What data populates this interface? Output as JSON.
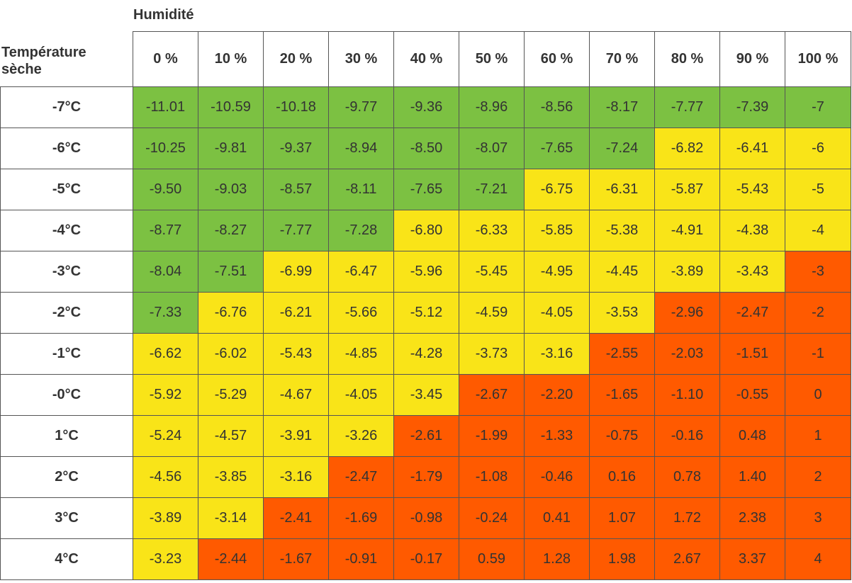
{
  "colors": {
    "green": "#7cc142",
    "yellow": "#f9e418",
    "orange": "#ff5a00",
    "border": "#555555",
    "text": "#333333"
  },
  "chart_data": {
    "type": "table",
    "column_title": "Humidité",
    "row_title": "Température\nsèche",
    "columns": [
      "0 %",
      "10 %",
      "20 %",
      "30 %",
      "40 %",
      "50 %",
      "60 %",
      "70 %",
      "80 %",
      "90 %",
      "100 %"
    ],
    "rows": [
      "-7°C",
      "-6°C",
      "-5°C",
      "-4°C",
      "-3°C",
      "-2°C",
      "-1°C",
      "-0°C",
      "1°C",
      "2°C",
      "3°C",
      "4°C"
    ],
    "values": [
      [
        "-11.01",
        "-10.59",
        "-10.18",
        "-9.77",
        "-9.36",
        "-8.96",
        "-8.56",
        "-8.17",
        "-7.77",
        "-7.39",
        "-7"
      ],
      [
        "-10.25",
        "-9.81",
        "-9.37",
        "-8.94",
        "-8.50",
        "-8.07",
        "-7.65",
        "-7.24",
        "-6.82",
        "-6.41",
        "-6"
      ],
      [
        "-9.50",
        "-9.03",
        "-8.57",
        "-8.11",
        "-7.65",
        "-7.21",
        "-6.75",
        "-6.31",
        "-5.87",
        "-5.43",
        "-5"
      ],
      [
        "-8.77",
        "-8.27",
        "-7.77",
        "-7.28",
        "-6.80",
        "-6.33",
        "-5.85",
        "-5.38",
        "-4.91",
        "-4.38",
        "-4"
      ],
      [
        "-8.04",
        "-7.51",
        "-6.99",
        "-6.47",
        "-5.96",
        "-5.45",
        "-4.95",
        "-4.45",
        "-3.89",
        "-3.43",
        "-3"
      ],
      [
        "-7.33",
        "-6.76",
        "-6.21",
        "-5.66",
        "-5.12",
        "-4.59",
        "-4.05",
        "-3.53",
        "-2.96",
        "-2.47",
        "-2"
      ],
      [
        "-6.62",
        "-6.02",
        "-5.43",
        "-4.85",
        "-4.28",
        "-3.73",
        "-3.16",
        "-2.55",
        "-2.03",
        "-1.51",
        "-1"
      ],
      [
        "-5.92",
        "-5.29",
        "-4.67",
        "-4.05",
        "-3.45",
        "-2.67",
        "-2.20",
        "-1.65",
        "-1.10",
        "-0.55",
        "0"
      ],
      [
        "-5.24",
        "-4.57",
        "-3.91",
        "-3.26",
        "-2.61",
        "-1.99",
        "-1.33",
        "-0.75",
        "-0.16",
        "0.48",
        "1"
      ],
      [
        "-4.56",
        "-3.85",
        "-3.16",
        "-2.47",
        "-1.79",
        "-1.08",
        "-0.46",
        "0.16",
        "0.78",
        "1.40",
        "2"
      ],
      [
        "-3.89",
        "-3.14",
        "-2.41",
        "-1.69",
        "-0.98",
        "-0.24",
        "0.41",
        "1.07",
        "1.72",
        "2.38",
        "3"
      ],
      [
        "-3.23",
        "-2.44",
        "-1.67",
        "-0.91",
        "-0.17",
        "0.59",
        "1.28",
        "1.98",
        "2.67",
        "3.37",
        "4"
      ]
    ],
    "cell_colors": [
      [
        "green",
        "green",
        "green",
        "green",
        "green",
        "green",
        "green",
        "green",
        "green",
        "green",
        "green"
      ],
      [
        "green",
        "green",
        "green",
        "green",
        "green",
        "green",
        "green",
        "green",
        "yellow",
        "yellow",
        "yellow"
      ],
      [
        "green",
        "green",
        "green",
        "green",
        "green",
        "green",
        "yellow",
        "yellow",
        "yellow",
        "yellow",
        "yellow"
      ],
      [
        "green",
        "green",
        "green",
        "green",
        "yellow",
        "yellow",
        "yellow",
        "yellow",
        "yellow",
        "yellow",
        "yellow"
      ],
      [
        "green",
        "green",
        "yellow",
        "yellow",
        "yellow",
        "yellow",
        "yellow",
        "yellow",
        "yellow",
        "yellow",
        "orange"
      ],
      [
        "green",
        "yellow",
        "yellow",
        "yellow",
        "yellow",
        "yellow",
        "yellow",
        "yellow",
        "orange",
        "orange",
        "orange"
      ],
      [
        "yellow",
        "yellow",
        "yellow",
        "yellow",
        "yellow",
        "yellow",
        "yellow",
        "orange",
        "orange",
        "orange",
        "orange"
      ],
      [
        "yellow",
        "yellow",
        "yellow",
        "yellow",
        "yellow",
        "orange",
        "orange",
        "orange",
        "orange",
        "orange",
        "orange"
      ],
      [
        "yellow",
        "yellow",
        "yellow",
        "yellow",
        "orange",
        "orange",
        "orange",
        "orange",
        "orange",
        "orange",
        "orange"
      ],
      [
        "yellow",
        "yellow",
        "yellow",
        "orange",
        "orange",
        "orange",
        "orange",
        "orange",
        "orange",
        "orange",
        "orange"
      ],
      [
        "yellow",
        "yellow",
        "orange",
        "orange",
        "orange",
        "orange",
        "orange",
        "orange",
        "orange",
        "orange",
        "orange"
      ],
      [
        "yellow",
        "orange",
        "orange",
        "orange",
        "orange",
        "orange",
        "orange",
        "orange",
        "orange",
        "orange",
        "orange"
      ]
    ]
  }
}
